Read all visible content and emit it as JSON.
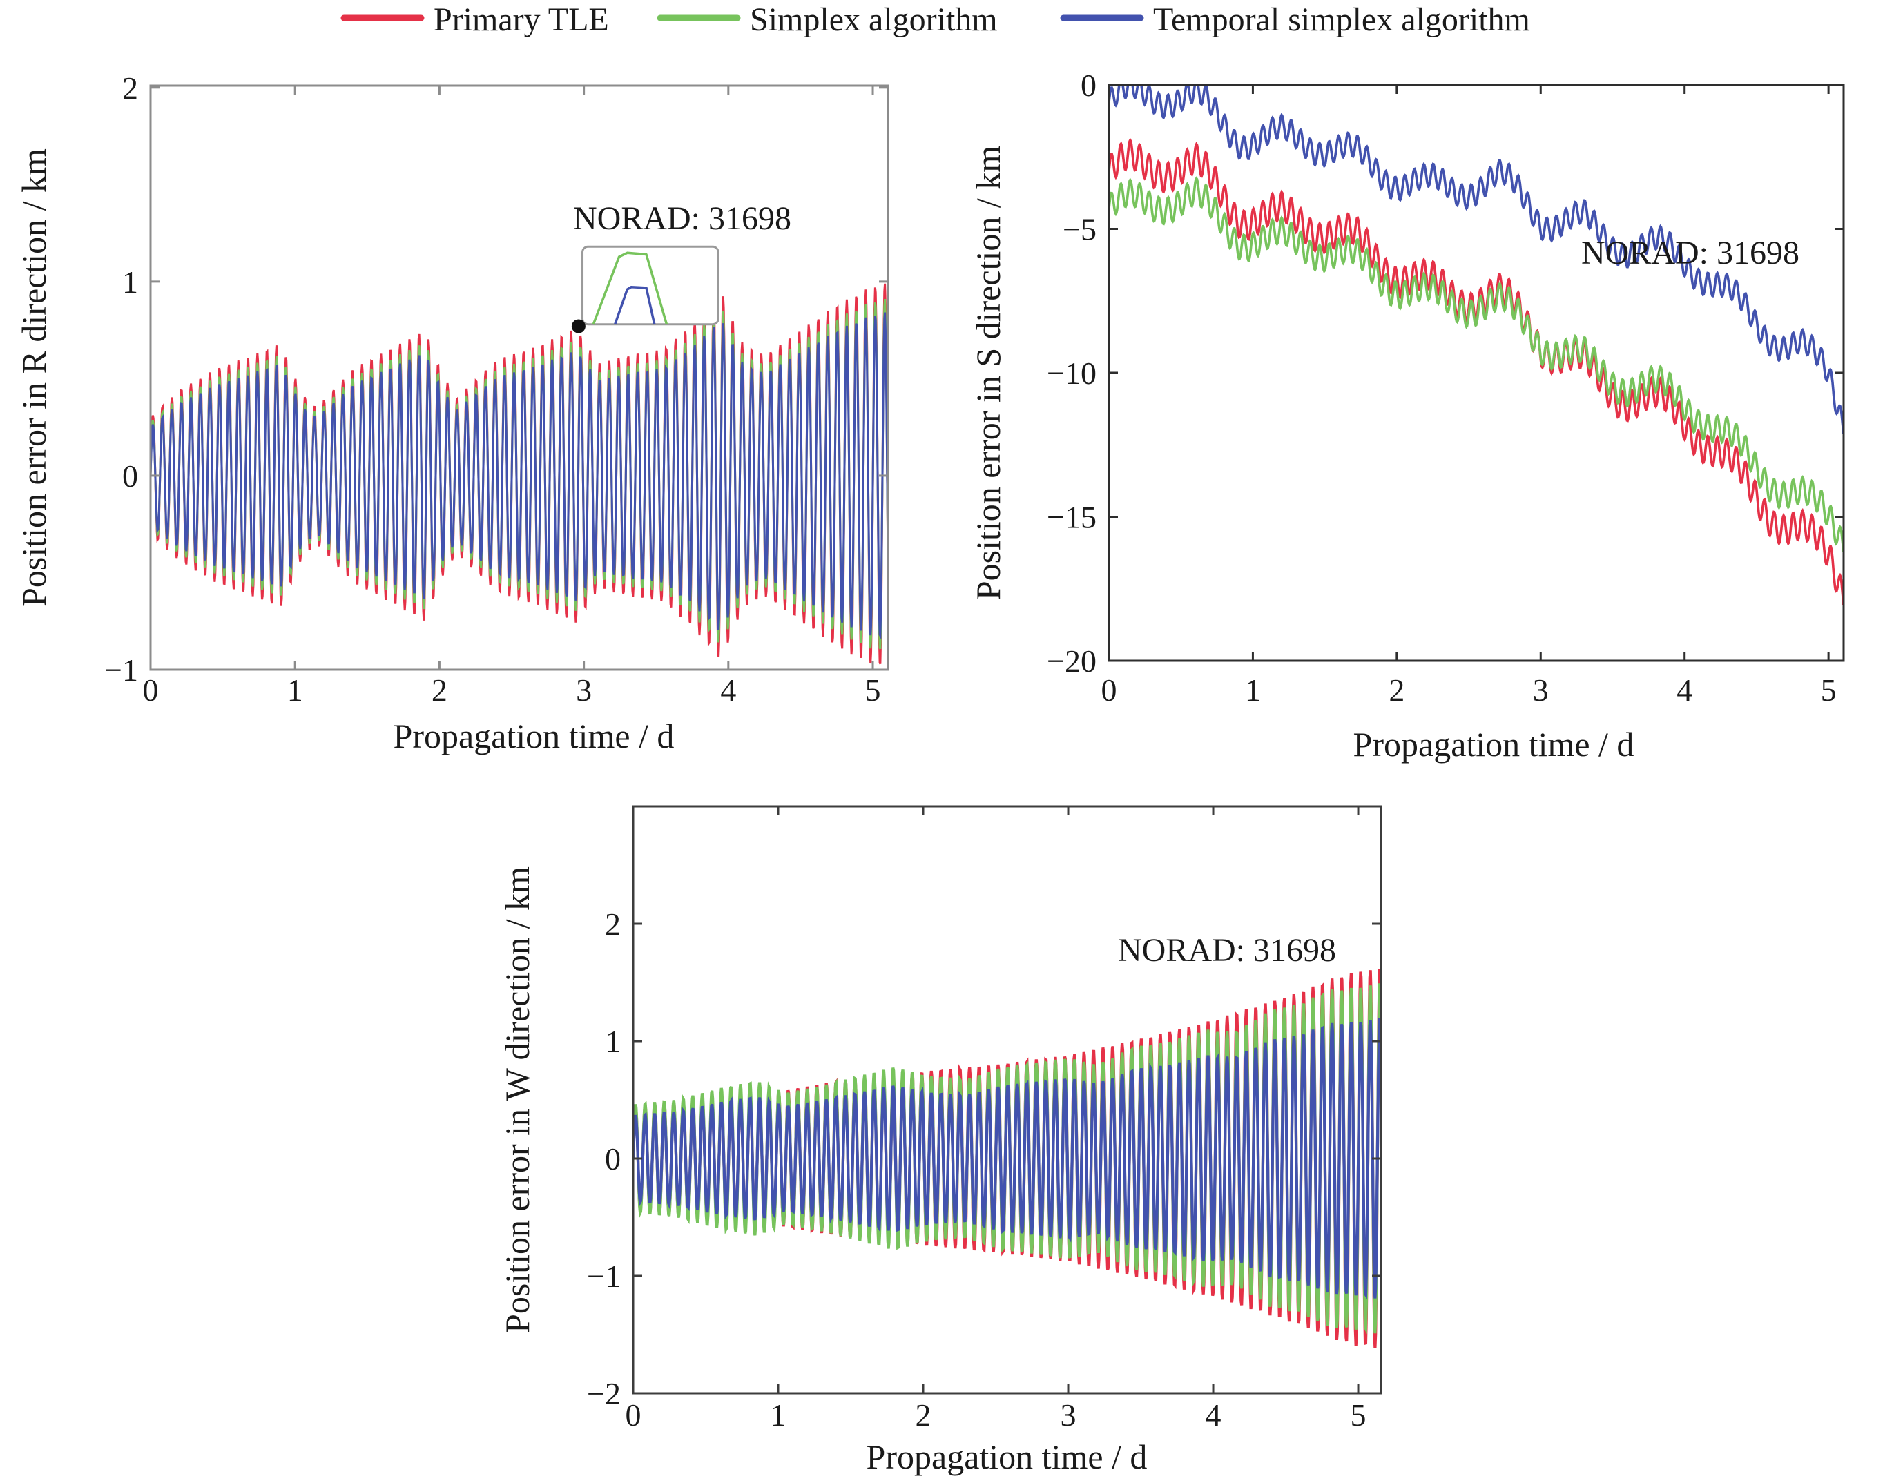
{
  "legend": {
    "items": [
      {
        "label": "Primary TLE",
        "color": "#e53147"
      },
      {
        "label": "Simplex algorithm",
        "color": "#77c35c"
      },
      {
        "label": "Temporal simplex algorithm",
        "color": "#4252ae"
      }
    ]
  },
  "chart_data": [
    {
      "type": "line",
      "name": "position-error-R",
      "ylabel": "Position error in R direction / km",
      "xlabel": "Propagation time / d",
      "annotation": "NORAD: 31698",
      "xlim": [
        0,
        5.105
      ],
      "ylim": [
        -1,
        2.01
      ],
      "xticks": [
        0,
        1,
        2,
        3,
        4,
        5
      ],
      "yticks": [
        -1,
        0,
        1,
        2
      ],
      "grid": false,
      "carrier_period_d": 0.0658,
      "envelope": [
        [
          0,
          0.3
        ],
        [
          0.2,
          0.44
        ],
        [
          0.45,
          0.55
        ],
        [
          0.7,
          0.62
        ],
        [
          0.9,
          0.68
        ],
        [
          1.05,
          0.42
        ],
        [
          1.15,
          0.35
        ],
        [
          1.4,
          0.55
        ],
        [
          1.65,
          0.65
        ],
        [
          1.9,
          0.75
        ],
        [
          2.02,
          0.52
        ],
        [
          2.12,
          0.4
        ],
        [
          2.4,
          0.6
        ],
        [
          2.65,
          0.66
        ],
        [
          2.95,
          0.76
        ],
        [
          3.1,
          0.58
        ],
        [
          3.3,
          0.62
        ],
        [
          3.55,
          0.65
        ],
        [
          3.75,
          0.78
        ],
        [
          3.95,
          0.95
        ],
        [
          4.1,
          0.68
        ],
        [
          4.25,
          0.62
        ],
        [
          4.5,
          0.75
        ],
        [
          4.75,
          0.88
        ],
        [
          4.95,
          0.96
        ],
        [
          5.11,
          1.0
        ]
      ],
      "series": [
        {
          "name": "Primary TLE",
          "color": "#e53147",
          "model": "oscillation",
          "scale": 1.0
        },
        {
          "name": "Simplex algorithm",
          "color": "#77c35c",
          "model": "oscillation",
          "scale": 0.92
        },
        {
          "name": "Temporal simplex algorithm",
          "color": "#4252ae",
          "model": "oscillation",
          "scale": 0.85
        }
      ],
      "inset": {
        "x": [
          2.99,
          3.93
        ],
        "y": [
          0.78,
          1.18
        ],
        "dot": [
          2.963,
          0.77
        ],
        "curves": [
          {
            "color": "#77c35c",
            "pts": [
              [
                0.08,
                1.0
              ],
              [
                0.27,
                0.13
              ],
              [
                0.33,
                0.08
              ],
              [
                0.47,
                0.1
              ],
              [
                0.62,
                1.0
              ]
            ]
          },
          {
            "color": "#4252ae",
            "pts": [
              [
                0.24,
                1.0
              ],
              [
                0.33,
                0.55
              ],
              [
                0.36,
                0.52
              ],
              [
                0.47,
                0.53
              ],
              [
                0.53,
                1.0
              ]
            ]
          }
        ]
      }
    },
    {
      "type": "line",
      "name": "position-error-S",
      "ylabel": "Position error in S direction / km",
      "xlabel": "Propagation time / d",
      "annotation": "NORAD: 31698",
      "xlim": [
        0,
        5.105
      ],
      "ylim": [
        -20,
        0
      ],
      "xticks": [
        0,
        1,
        2,
        3,
        4,
        5
      ],
      "yticks": [
        0,
        -5,
        -10,
        -15,
        -20
      ],
      "grid": false,
      "carrier_period_d": 0.0658,
      "series": [
        {
          "name": "Primary TLE",
          "color": "#e53147",
          "model": "trend",
          "ripple": 0.5,
          "wave": 0.8,
          "trend": [
            [
              0,
              -3.0
            ],
            [
              0.3,
              -3.2
            ],
            [
              0.6,
              -2.9
            ],
            [
              0.9,
              -4.0
            ],
            [
              1.2,
              -4.6
            ],
            [
              1.5,
              -5.3
            ],
            [
              1.8,
              -5.9
            ],
            [
              2.1,
              -6.3
            ],
            [
              2.4,
              -7.2
            ],
            [
              2.7,
              -7.7
            ],
            [
              3.0,
              -9.0
            ],
            [
              3.3,
              -9.5
            ],
            [
              3.6,
              -10.6
            ],
            [
              3.9,
              -11.6
            ],
            [
              4.2,
              -12.8
            ],
            [
              4.5,
              -14.0
            ],
            [
              4.8,
              -15.3
            ],
            [
              5.0,
              -16.5
            ],
            [
              5.15,
              -18.3
            ]
          ]
        },
        {
          "name": "Simplex algorithm",
          "color": "#77c35c",
          "model": "trend",
          "ripple": 0.45,
          "wave": 0.7,
          "trend": [
            [
              0,
              -4.3
            ],
            [
              0.3,
              -4.4
            ],
            [
              0.6,
              -4.0
            ],
            [
              0.9,
              -4.9
            ],
            [
              1.2,
              -5.4
            ],
            [
              1.5,
              -6.0
            ],
            [
              1.8,
              -6.5
            ],
            [
              2.1,
              -6.8
            ],
            [
              2.4,
              -7.5
            ],
            [
              2.7,
              -7.9
            ],
            [
              3.0,
              -9.0
            ],
            [
              3.3,
              -9.3
            ],
            [
              3.6,
              -10.2
            ],
            [
              3.9,
              -11.0
            ],
            [
              4.2,
              -12.0
            ],
            [
              4.5,
              -13.0
            ],
            [
              4.8,
              -14.1
            ],
            [
              5.0,
              -15.1
            ],
            [
              5.15,
              -16.3
            ]
          ]
        },
        {
          "name": "Temporal simplex algorithm",
          "color": "#4252ae",
          "model": "trend",
          "ripple": 0.4,
          "wave": 0.75,
          "trend": [
            [
              0,
              -0.6
            ],
            [
              0.3,
              -0.7
            ],
            [
              0.6,
              -0.5
            ],
            [
              0.9,
              -1.4
            ],
            [
              1.2,
              -1.8
            ],
            [
              1.5,
              -2.4
            ],
            [
              1.8,
              -2.9
            ],
            [
              2.1,
              -3.0
            ],
            [
              2.4,
              -3.5
            ],
            [
              2.7,
              -3.6
            ],
            [
              3.0,
              -4.7
            ],
            [
              3.3,
              -4.5
            ],
            [
              3.6,
              -5.4
            ],
            [
              3.9,
              -6.1
            ],
            [
              4.2,
              -7.0
            ],
            [
              4.5,
              -8.0
            ],
            [
              4.8,
              -8.9
            ],
            [
              5.0,
              -10.2
            ],
            [
              5.15,
              -12.6
            ]
          ]
        }
      ]
    },
    {
      "type": "line",
      "name": "position-error-W",
      "ylabel": "Position error in W direction / km",
      "xlabel": "Propagation time / d",
      "annotation": "NORAD: 31698",
      "xlim": [
        0,
        5.157
      ],
      "ylim": [
        -2,
        3.0
      ],
      "xticks": [
        0,
        1,
        2,
        3,
        4,
        5
      ],
      "yticks": [
        -2,
        -1,
        0,
        1,
        2
      ],
      "grid": false,
      "carrier_period_d": 0.0658,
      "series": [
        {
          "name": "Primary TLE",
          "color": "#e53147",
          "model": "oscillation",
          "scale": 1.0,
          "envelope": [
            [
              0,
              0.44
            ],
            [
              0.5,
              0.52
            ],
            [
              1,
              0.57
            ],
            [
              1.5,
              0.68
            ],
            [
              2,
              0.74
            ],
            [
              2.5,
              0.8
            ],
            [
              3,
              0.88
            ],
            [
              3.5,
              1.02
            ],
            [
              4,
              1.18
            ],
            [
              4.35,
              1.32
            ],
            [
              4.6,
              1.42
            ],
            [
              4.85,
              1.55
            ],
            [
              5.0,
              1.6
            ],
            [
              5.16,
              1.62
            ]
          ]
        },
        {
          "name": "Simplex algorithm",
          "color": "#77c35c",
          "model": "oscillation",
          "scale": 1.0,
          "envelope": [
            [
              0,
              0.46
            ],
            [
              0.3,
              0.5
            ],
            [
              0.6,
              0.6
            ],
            [
              0.85,
              0.66
            ],
            [
              1.05,
              0.56
            ],
            [
              1.3,
              0.62
            ],
            [
              1.55,
              0.7
            ],
            [
              1.8,
              0.78
            ],
            [
              2.05,
              0.7
            ],
            [
              2.3,
              0.68
            ],
            [
              2.55,
              0.78
            ],
            [
              2.8,
              0.82
            ],
            [
              3.0,
              0.86
            ],
            [
              3.2,
              0.8
            ],
            [
              3.45,
              0.95
            ],
            [
              3.7,
              1.0
            ],
            [
              3.95,
              1.1
            ],
            [
              4.15,
              1.08
            ],
            [
              4.4,
              1.27
            ],
            [
              4.6,
              1.32
            ],
            [
              4.8,
              1.44
            ],
            [
              5.0,
              1.46
            ],
            [
              5.16,
              1.5
            ]
          ]
        },
        {
          "name": "Temporal simplex algorithm",
          "color": "#4252ae",
          "model": "oscillation",
          "scale": 0.8,
          "envelope_from": "Simplex algorithm"
        }
      ]
    }
  ]
}
